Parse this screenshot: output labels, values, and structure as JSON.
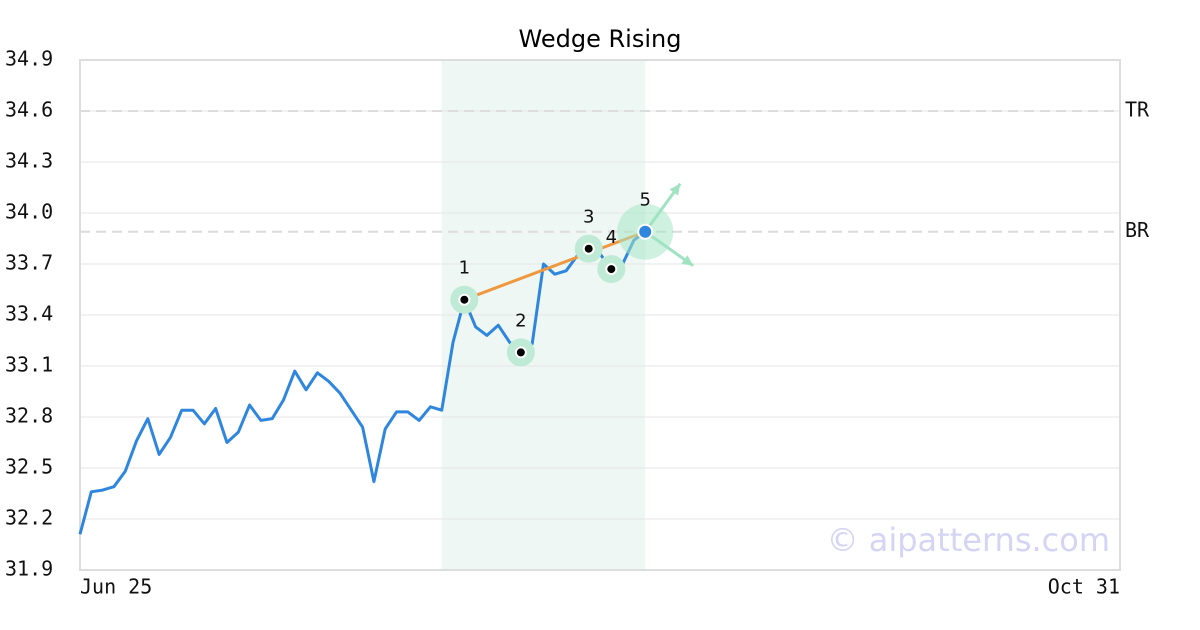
{
  "chart_data": {
    "type": "line",
    "title": "Wedge Rising",
    "categories": [
      "Jun 25",
      null,
      null,
      null,
      null,
      null,
      null,
      null,
      null,
      null,
      null,
      null,
      null,
      null,
      null,
      null,
      null,
      null,
      null,
      null,
      null,
      null,
      null,
      null,
      null,
      null,
      null,
      null,
      null,
      null,
      null,
      null,
      null,
      null,
      null,
      null,
      null,
      null,
      null,
      null,
      null,
      null,
      null,
      null,
      null,
      null,
      null,
      null,
      null,
      null,
      null,
      null,
      null,
      null,
      null,
      null,
      null,
      null,
      null,
      null,
      null,
      null,
      null,
      null,
      null,
      null,
      null,
      null,
      null,
      null,
      null,
      null,
      null,
      null,
      null,
      null,
      null,
      null,
      null,
      null,
      null,
      null,
      null,
      null,
      null,
      null,
      null,
      null,
      null,
      null,
      null,
      null,
      "Oct 31"
    ],
    "values": [
      32.11,
      32.36,
      32.37,
      32.39,
      32.48,
      32.66,
      32.79,
      32.58,
      32.68,
      32.84,
      32.84,
      32.76,
      32.85,
      32.65,
      32.71,
      32.87,
      32.78,
      32.79,
      32.9,
      33.07,
      32.96,
      33.06,
      33.01,
      32.94,
      32.84,
      32.74,
      32.42,
      32.73,
      32.83,
      32.83,
      32.78,
      32.86,
      32.84,
      33.24,
      33.49,
      33.33,
      33.28,
      33.34,
      33.24,
      33.18,
      33.23,
      33.7,
      33.64,
      33.66,
      33.75,
      33.79,
      33.76,
      33.67,
      33.7,
      33.84,
      33.89,
      null,
      null,
      null,
      null,
      null,
      null,
      null,
      null,
      null,
      null,
      null,
      null,
      null,
      null,
      null,
      null,
      null,
      null,
      null,
      null,
      null,
      null,
      null,
      null,
      null,
      null,
      null,
      null,
      null,
      null,
      null,
      null,
      null,
      null,
      null,
      null,
      null,
      null,
      null,
      null,
      null,
      null
    ],
    "color": "#2e86de",
    "ylim": [
      31.9,
      34.9
    ],
    "yticks": [
      31.9,
      32.2,
      32.5,
      32.8,
      33.1,
      33.4,
      33.7,
      {
        "value": 34,
        "label": "34.0"
      },
      34.3,
      34.6,
      34.9
    ],
    "grid": true,
    "reference_lines": [
      {
        "label": "TR",
        "value": 34.6
      },
      {
        "label": "BR",
        "value": 33.89
      }
    ],
    "highlight_range": [
      32,
      50
    ],
    "pattern_points": [
      {
        "label": "1",
        "index": 34,
        "value": 33.49
      },
      {
        "label": "2",
        "index": 39,
        "value": 33.18
      },
      {
        "label": "3",
        "index": 45,
        "value": 33.79
      },
      {
        "label": "4",
        "index": 47,
        "value": 33.67
      },
      {
        "label": "5",
        "index": 50,
        "value": 33.89
      }
    ],
    "trend_color": "#f0983f",
    "watermark": "© aipatterns.com"
  }
}
